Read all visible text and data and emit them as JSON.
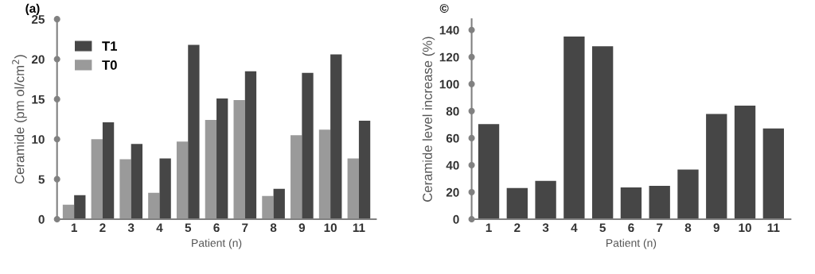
{
  "chart_data": [
    {
      "type": "bar",
      "title": "(a)",
      "xlabel": "Patient (n)",
      "ylabel": "Ceramide (pm ol/cm$^{2}$)",
      "categories": [
        "1",
        "2",
        "3",
        "4",
        "5",
        "6",
        "7",
        "8",
        "9",
        "10",
        "11"
      ],
      "series": [
        {
          "name": "T0",
          "color": "#9a9a9a",
          "values": [
            1.8,
            10.0,
            7.5,
            3.3,
            9.7,
            12.4,
            14.9,
            2.9,
            10.5,
            11.2,
            7.6
          ]
        },
        {
          "name": "T1",
          "color": "#464646",
          "values": [
            3.0,
            12.1,
            9.4,
            7.6,
            21.8,
            15.1,
            18.5,
            3.8,
            18.3,
            20.6,
            12.3
          ]
        }
      ],
      "ylim": [
        0,
        25
      ],
      "yticks": [
        0,
        5,
        10,
        15,
        20,
        25
      ],
      "legend": "top left",
      "grid": false
    },
    {
      "type": "bar",
      "title": "©",
      "xlabel": "Patient (n)",
      "ylabel": "Ceramide level increase (%)",
      "categories": [
        "1",
        "2",
        "3",
        "4",
        "5",
        "6",
        "7",
        "8",
        "9",
        "10",
        "11"
      ],
      "series": [
        {
          "color": "#464646",
          "values": [
            70.4,
            23,
            28.3,
            135.2,
            127.9,
            23.5,
            24.7,
            36.7,
            77.8,
            84.1,
            67.1
          ]
        }
      ],
      "ylim": [
        0,
        148
      ],
      "yticks": [
        0,
        20,
        40,
        60,
        80,
        100,
        120,
        140
      ],
      "legend": false,
      "grid": false
    }
  ]
}
